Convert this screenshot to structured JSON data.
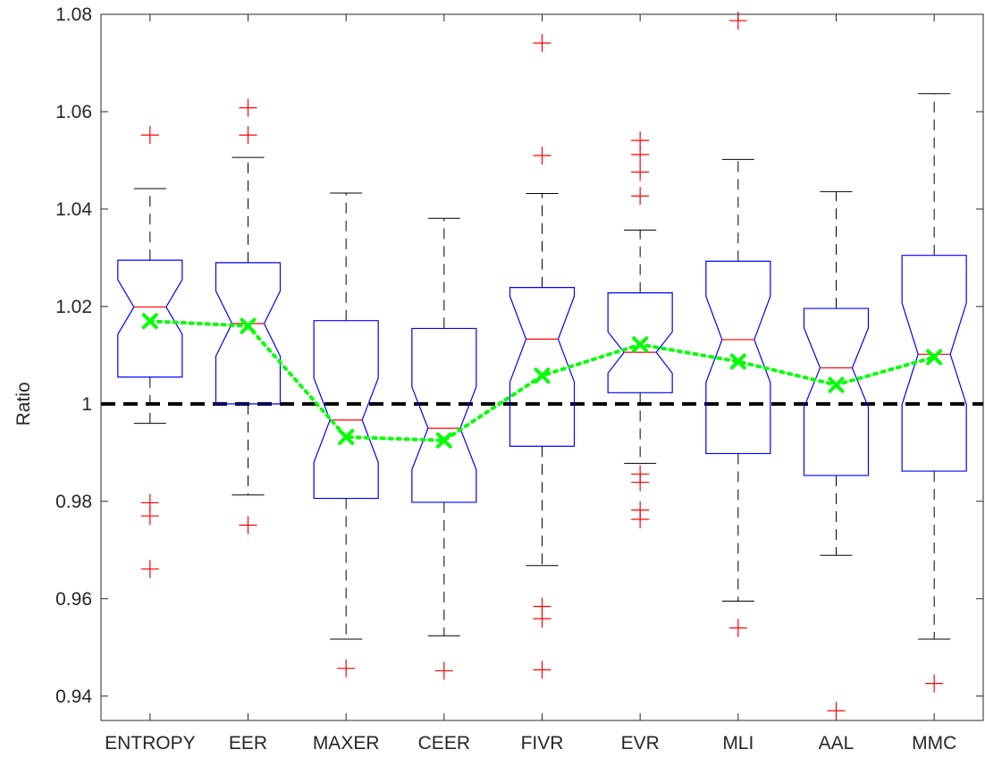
{
  "chart_data": {
    "type": "box",
    "title": "",
    "xlabel": "",
    "ylabel": "Ratio",
    "ylim": [
      0.935,
      1.08
    ],
    "yticks": [
      0.94,
      0.96,
      0.98,
      1,
      1.02,
      1.04,
      1.06,
      1.08
    ],
    "ytick_labels": [
      "0.94",
      "0.96",
      "0.98",
      "1",
      "1.02",
      "1.04",
      "1.06",
      "1.08"
    ],
    "categories": [
      "ENTROPY",
      "EER",
      "MAXER",
      "CEER",
      "FIVR",
      "EVR",
      "MLI",
      "AAL",
      "MMC"
    ],
    "reference_line": 1.0,
    "boxes": [
      {
        "q1": 1.0055,
        "median": 1.0199,
        "q3": 1.0295,
        "notch_low": 1.0143,
        "notch_high": 1.0255,
        "whisker_low": 0.996,
        "whisker_high": 1.0442,
        "outliers": [
          1.0552,
          0.9797,
          0.977,
          0.9661
        ]
      },
      {
        "q1": 1.0,
        "median": 1.0165,
        "q3": 1.029,
        "notch_low": 1.0098,
        "notch_high": 1.0232,
        "whisker_low": 0.9813,
        "whisker_high": 1.0506,
        "outliers": [
          1.0608,
          1.0552,
          0.9751
        ]
      },
      {
        "q1": 0.9806,
        "median": 0.9967,
        "q3": 1.0171,
        "notch_low": 0.988,
        "notch_high": 1.0053,
        "whisker_low": 0.9517,
        "whisker_high": 1.0433,
        "outliers": [
          0.9457
        ]
      },
      {
        "q1": 0.9798,
        "median": 0.995,
        "q3": 1.0155,
        "notch_low": 0.9865,
        "notch_high": 1.0035,
        "whisker_low": 0.9524,
        "whisker_high": 1.0381,
        "outliers": [
          0.9452
        ]
      },
      {
        "q1": 0.9913,
        "median": 1.0133,
        "q3": 1.0239,
        "notch_low": 1.0045,
        "notch_high": 1.0221,
        "whisker_low": 0.9668,
        "whisker_high": 1.0432,
        "outliers": [
          1.0741,
          1.051,
          0.9584,
          0.9559,
          0.9454
        ]
      },
      {
        "q1": 1.0023,
        "median": 1.0106,
        "q3": 1.0228,
        "notch_low": 1.0063,
        "notch_high": 1.0148,
        "whisker_low": 0.9878,
        "whisker_high": 1.0357,
        "outliers": [
          1.0541,
          1.0512,
          1.0476,
          1.0427,
          0.9856,
          0.9839,
          0.9782,
          0.9763
        ]
      },
      {
        "q1": 0.9898,
        "median": 1.0132,
        "q3": 1.0293,
        "notch_low": 1.0044,
        "notch_high": 1.0221,
        "whisker_low": 0.9595,
        "whisker_high": 1.0502,
        "outliers": [
          1.0787,
          0.954
        ]
      },
      {
        "q1": 0.9853,
        "median": 1.0074,
        "q3": 1.0196,
        "notch_low": 0.9993,
        "notch_high": 1.0156,
        "whisker_low": 0.9689,
        "whisker_high": 1.0436,
        "outliers": [
          0.937
        ]
      },
      {
        "q1": 0.9862,
        "median": 1.0102,
        "q3": 1.0305,
        "notch_low": 0.9999,
        "notch_high": 1.0207,
        "whisker_low": 0.9517,
        "whisker_high": 1.0637,
        "outliers": [
          0.9426
        ]
      }
    ],
    "means": [
      1.017,
      1.016,
      0.9932,
      0.9925,
      1.0058,
      1.0122,
      1.0087,
      1.0039,
      1.0096
    ],
    "colors": {
      "box": "#0000ff",
      "median": "#ff0000",
      "whisker": "#000000",
      "outlier": "#ff0000",
      "mean": "#00ff00",
      "reference": "#000000",
      "axis": "#262626"
    }
  }
}
